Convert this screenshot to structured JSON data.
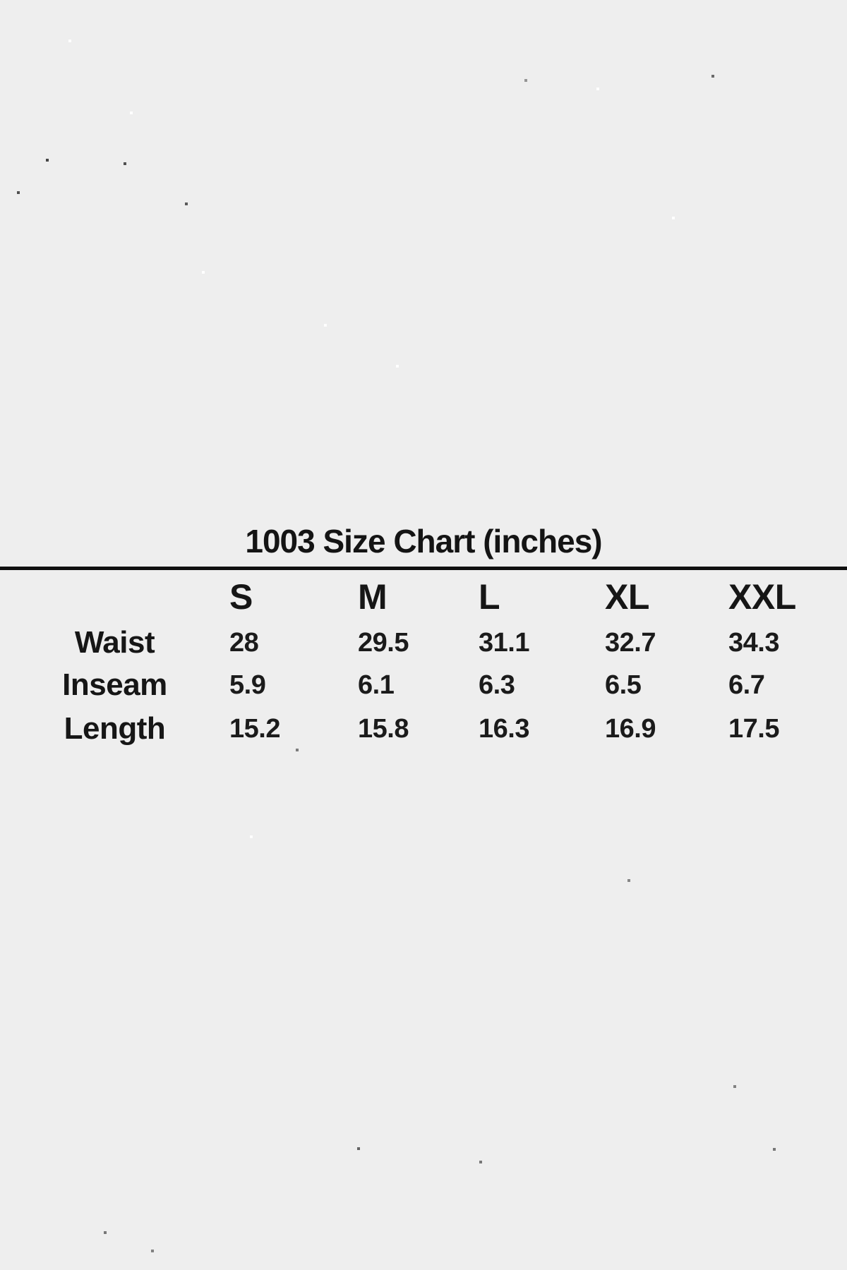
{
  "page": {
    "background_color": "#eeeeee",
    "text_color": "#161616",
    "rule_color": "#101010"
  },
  "chart_data": {
    "type": "table",
    "title": "1003 Size Chart (inches)",
    "units": "inches",
    "columns": [
      "S",
      "M",
      "L",
      "XL",
      "XXL"
    ],
    "rows": [
      {
        "label": "Waist",
        "values": [
          "28",
          "29.5",
          "31.1",
          "32.7",
          "34.3"
        ]
      },
      {
        "label": "Inseam",
        "values": [
          "5.9",
          "6.1",
          "6.3",
          "6.5",
          "6.7"
        ]
      },
      {
        "label": "Length",
        "values": [
          "15.2",
          "15.8",
          "16.3",
          "16.9",
          "17.5"
        ]
      }
    ]
  }
}
